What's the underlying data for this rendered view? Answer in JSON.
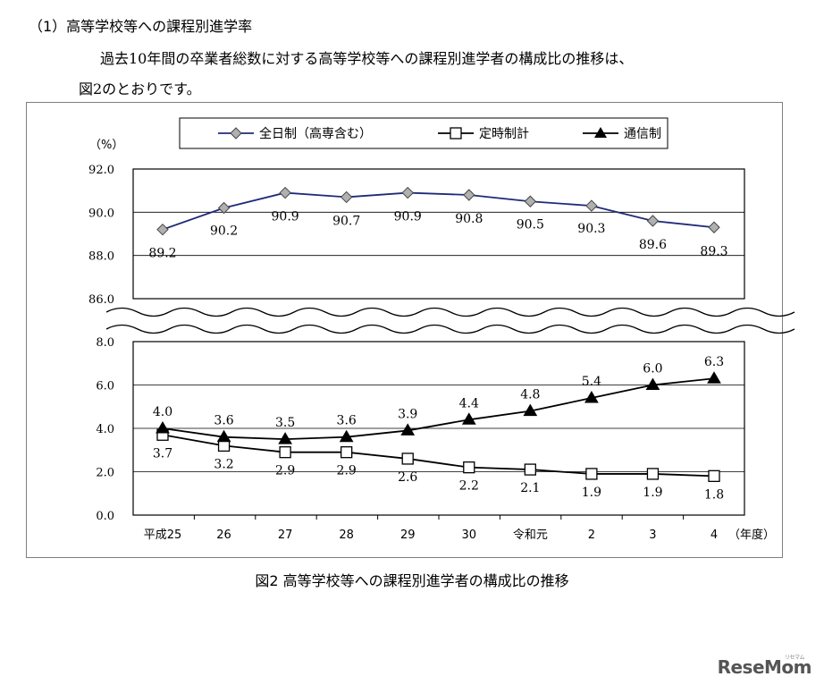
{
  "heading": "（1）高等学校等への課程別進学率",
  "para1": "過去10年間の卒業者総数に対する高等学校等への課程別進学者の構成比の推移は、",
  "para2": "図2のとおりです。",
  "caption": "図2  高等学校等への課程別進学者の構成比の推移",
  "logo": "ReseMom",
  "logo_sub": "リセマム",
  "chart_data": {
    "type": "line",
    "unit_label": "（%）",
    "x_unit": "（年度）",
    "categories": [
      "平成25",
      "26",
      "27",
      "28",
      "29",
      "30",
      "令和元",
      "2",
      "3",
      "4"
    ],
    "upper_axis": {
      "ylim": [
        86.0,
        92.0
      ],
      "ticks": [
        "92.0",
        "90.0",
        "88.0",
        "86.0"
      ]
    },
    "lower_axis": {
      "ylim": [
        0.0,
        8.0
      ],
      "ticks": [
        "8.0",
        "6.0",
        "4.0",
        "2.0",
        "0.0"
      ]
    },
    "legend_position": "top",
    "series": [
      {
        "name": "全日制（高専含む）",
        "marker": "diamond",
        "color": "#1f2a7a",
        "marker_fill": "#b0b0b0",
        "axis": "upper",
        "values": [
          89.2,
          90.2,
          90.9,
          90.7,
          90.9,
          90.8,
          90.5,
          90.3,
          89.6,
          89.3
        ],
        "labels": [
          "89.2",
          "90.2",
          "90.9",
          "90.7",
          "90.9",
          "90.8",
          "90.5",
          "90.3",
          "89.6",
          "89.3"
        ]
      },
      {
        "name": "定時制計",
        "marker": "square",
        "color": "#000000",
        "marker_fill": "#ffffff",
        "axis": "lower",
        "values": [
          3.7,
          3.2,
          2.9,
          2.9,
          2.6,
          2.2,
          2.1,
          1.9,
          1.9,
          1.8
        ],
        "labels": [
          "3.7",
          "3.2",
          "2.9",
          "2.9",
          "2.6",
          "2.2",
          "2.1",
          "1.9",
          "1.9",
          "1.8"
        ]
      },
      {
        "name": "通信制",
        "marker": "triangle",
        "color": "#000000",
        "marker_fill": "#000000",
        "axis": "lower",
        "values": [
          4.0,
          3.6,
          3.5,
          3.6,
          3.9,
          4.4,
          4.8,
          5.4,
          6.0,
          6.3
        ],
        "labels": [
          "4.0",
          "3.6",
          "3.5",
          "3.6",
          "3.9",
          "4.4",
          "4.8",
          "5.4",
          "6.0",
          "6.3"
        ]
      }
    ]
  }
}
